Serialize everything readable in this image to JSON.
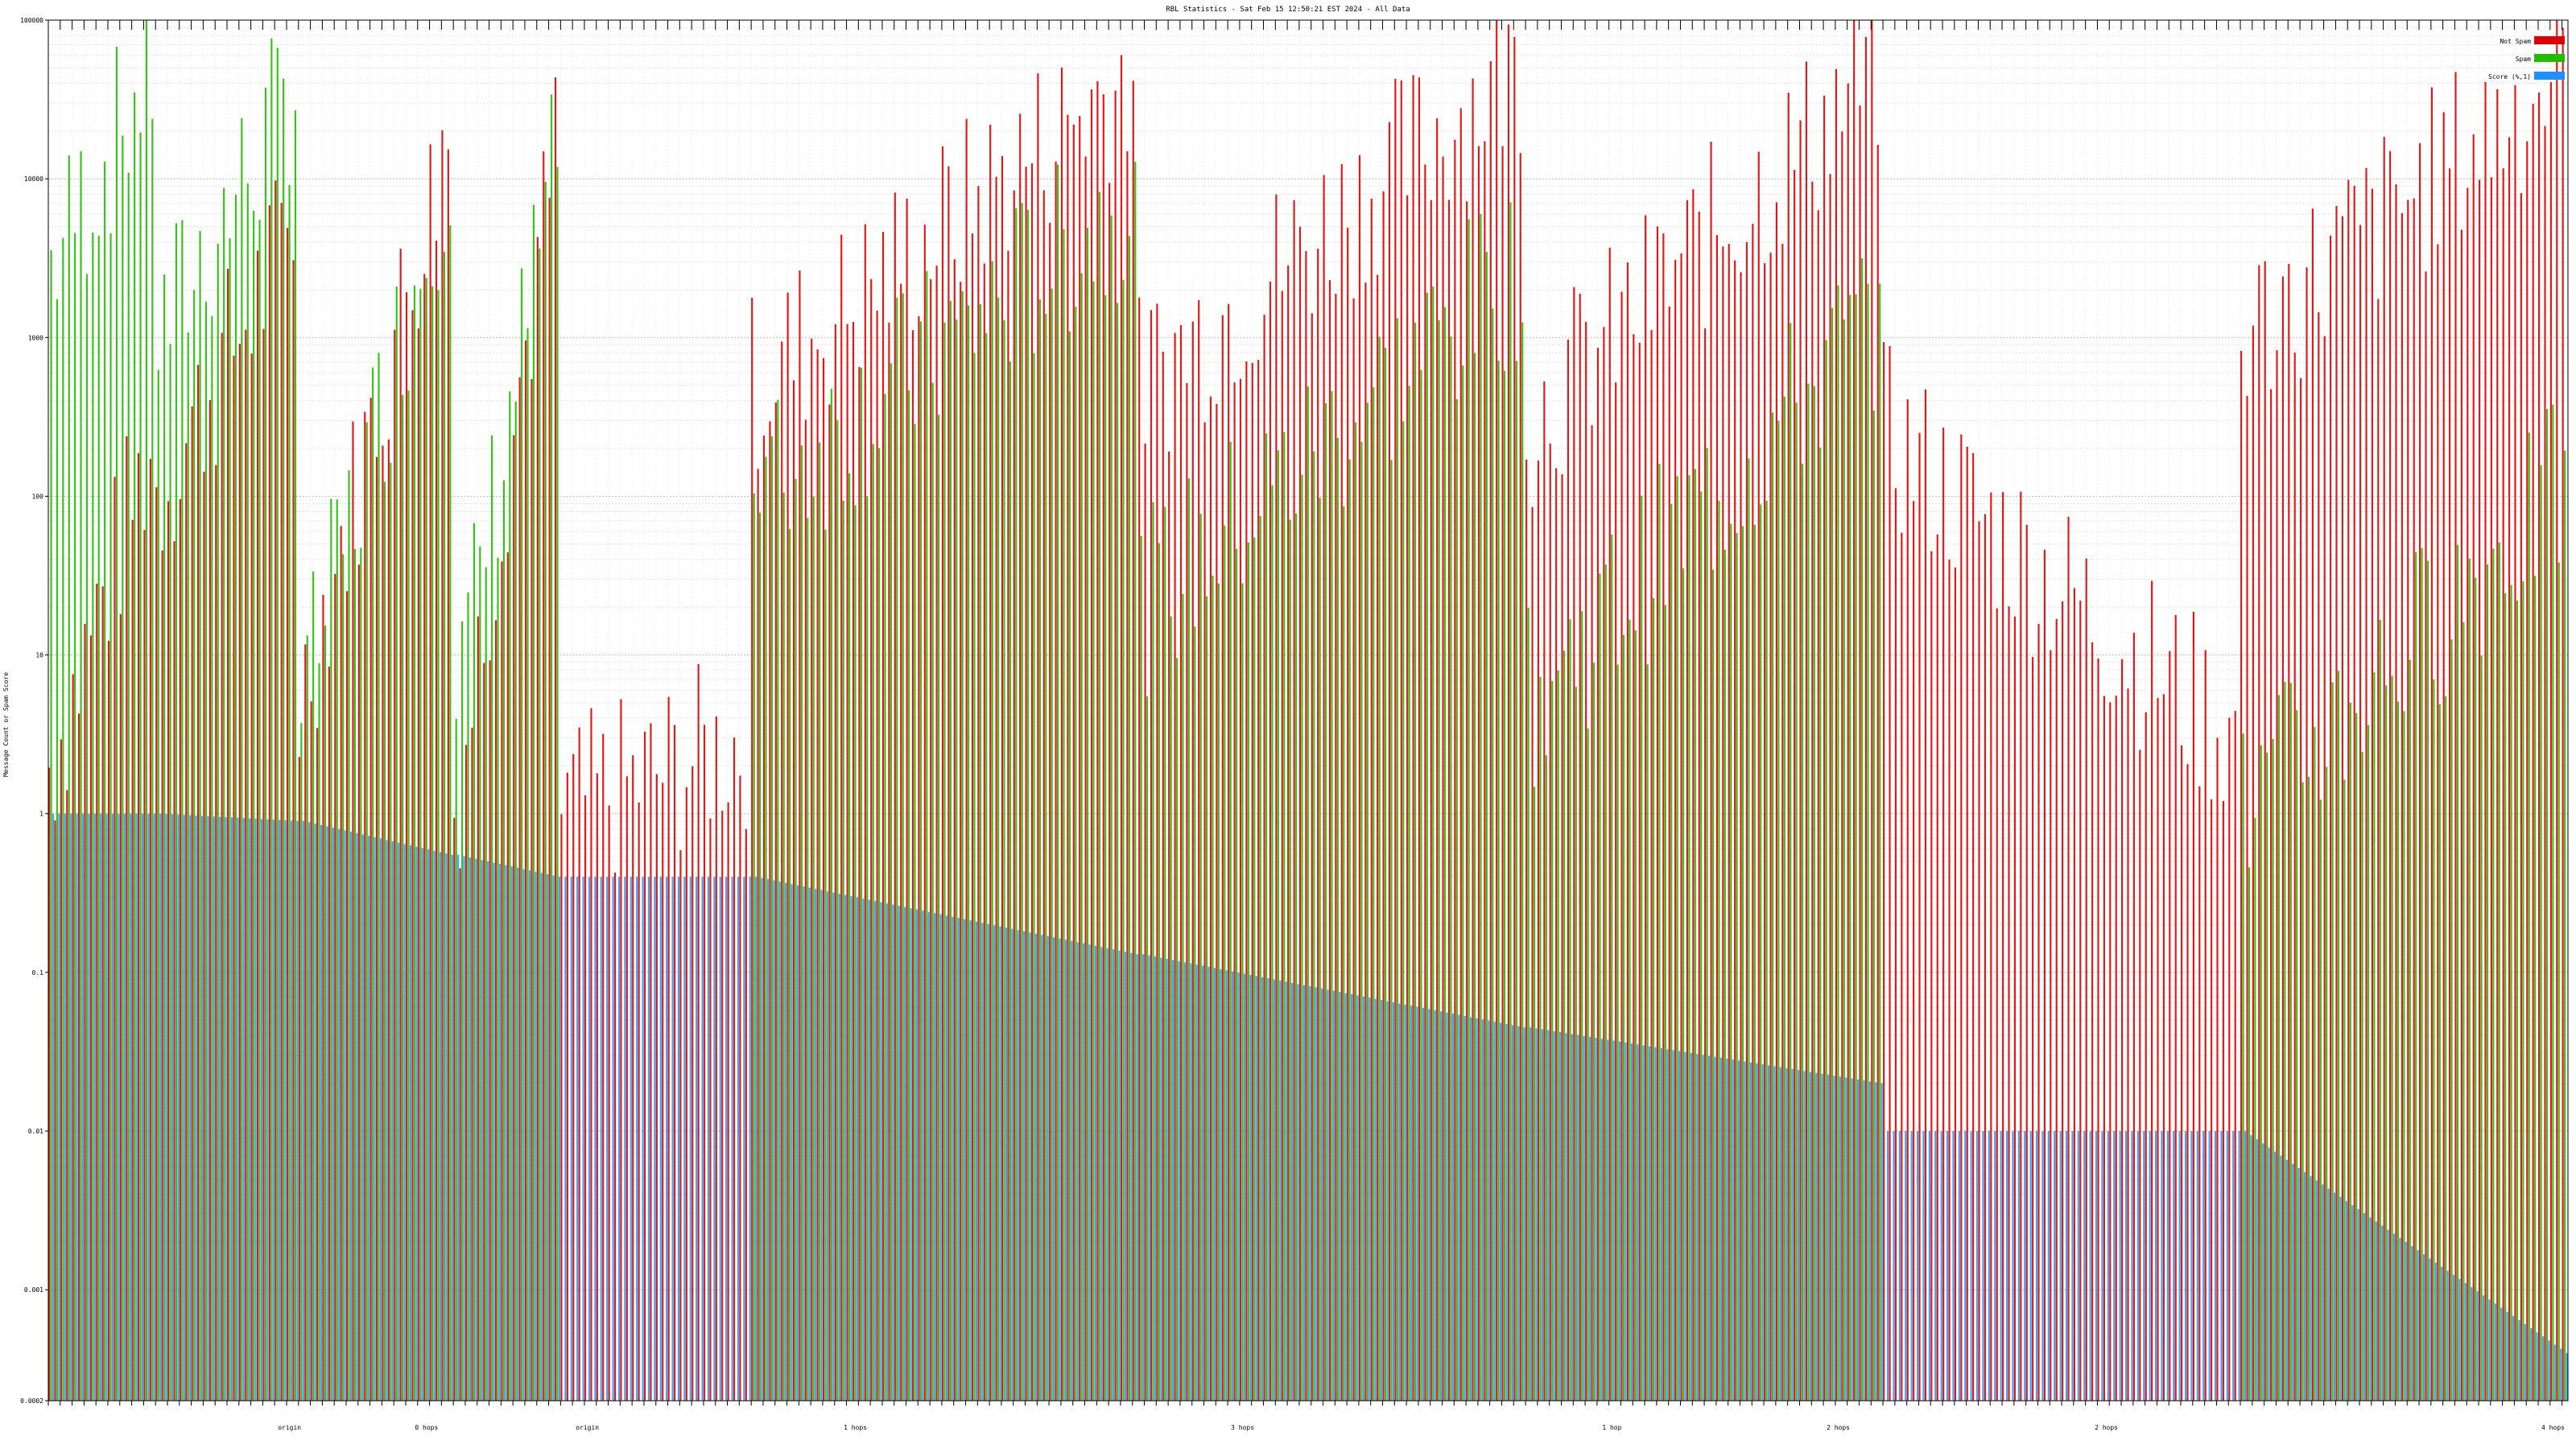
{
  "chart_data": {
    "type": "bar",
    "title": "RBL Statistics - Sat Feb 15 12:50:21 EST 2024 - All Data",
    "xlabel": "",
    "ylabel": "Message Count or Spam Score",
    "yscale": "log",
    "ylim": [
      0.0002,
      100000
    ],
    "y_ticks": [
      {
        "value": 100000,
        "label": "100000"
      },
      {
        "value": 10000,
        "label": "10000"
      },
      {
        "value": 1000,
        "label": "1000"
      },
      {
        "value": 100,
        "label": "100"
      },
      {
        "value": 10,
        "label": "10"
      },
      {
        "value": 1,
        "label": "1"
      },
      {
        "value": 0.1,
        "label": "0.1"
      },
      {
        "value": 0.01,
        "label": "0.01"
      },
      {
        "value": 0.001,
        "label": "0.001"
      },
      {
        "value": 0.0002,
        "label": "0.0002"
      }
    ],
    "grid": true,
    "legend_position": "top-right",
    "series": [
      {
        "name": "Not Spam",
        "color": "#dd0000"
      },
      {
        "name": "Spam",
        "color": "#22bb00"
      },
      {
        "name": "Score (%,1)",
        "color": "#1e90ff"
      }
    ],
    "segments": [
      {
        "count": 18,
        "not_spam": [
          2,
          200
        ],
        "spam": [
          3000,
          50000
        ],
        "score": [
          1,
          1
        ]
      },
      {
        "count": 24,
        "not_spam": [
          100,
          5000
        ],
        "spam": [
          1000,
          40000
        ],
        "score": [
          1,
          0.9
        ]
      },
      {
        "count": 26,
        "not_spam": [
          5,
          20000
        ],
        "spam": [
          5,
          15000
        ],
        "score": [
          0.9,
          0.55
        ]
      },
      {
        "count": 18,
        "not_spam": [
          1,
          15000
        ],
        "spam": [
          5,
          15000
        ],
        "score": [
          0.55,
          0.4
        ]
      },
      {
        "count": 32,
        "not_spam": [
          1,
          3
        ],
        "spam": [
          0,
          0
        ],
        "score": [
          0.4,
          0.4
        ]
      },
      {
        "count": 65,
        "not_spam": [
          500,
          50000
        ],
        "spam": [
          100,
          8000
        ],
        "score": [
          0.4,
          0.13
        ]
      },
      {
        "count": 65,
        "not_spam": [
          500,
          55000
        ],
        "spam": [
          20,
          3000
        ],
        "score": [
          0.13,
          0.045
        ]
      },
      {
        "count": 60,
        "not_spam": [
          300,
          50000
        ],
        "spam": [
          5,
          1500
        ],
        "score": [
          0.045,
          0.02
        ]
      },
      {
        "count": 60,
        "not_spam": [
          250,
          3
        ],
        "spam": [
          0,
          0
        ],
        "score": [
          0.01,
          0.01
        ]
      },
      {
        "count": 55,
        "not_spam": [
          1000,
          50000
        ],
        "spam": [
          1,
          120
        ],
        "score": [
          0.01,
          0.0004
        ]
      }
    ],
    "x_labels": [
      {
        "index": 40,
        "label": "origin"
      },
      {
        "index": 63,
        "label": "0 hops"
      },
      {
        "index": 90,
        "label": "origin"
      },
      {
        "index": 135,
        "label": "1 hops"
      },
      {
        "index": 200,
        "label": "3 hops"
      },
      {
        "index": 262,
        "label": "1 hop"
      },
      {
        "index": 300,
        "label": "2 hops"
      },
      {
        "index": 345,
        "label": "2 hops"
      },
      {
        "index": 420,
        "label": "4 hops"
      },
      {
        "index": 455,
        "label": "5 hops"
      }
    ]
  }
}
